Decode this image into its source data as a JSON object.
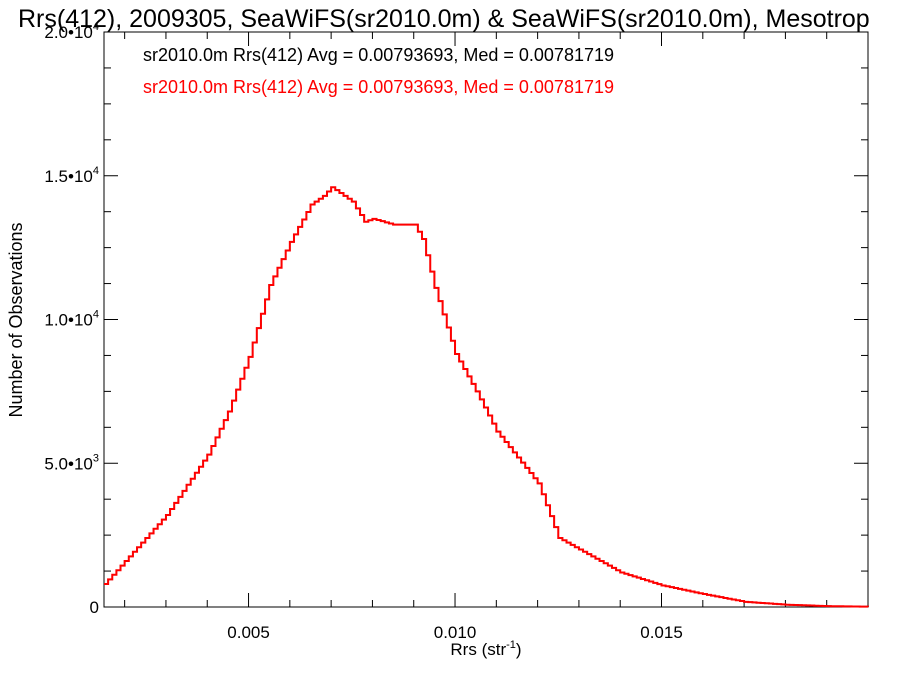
{
  "chart_data": {
    "type": "histogram-step",
    "title": "Rrs(412), 2009305, SeaWiFS(sr2010.0m) & SeaWiFS(sr2010.0m), Mesotrop",
    "xlabel": {
      "base": "Rrs (str",
      "sup": "-1",
      "tail": ")"
    },
    "ylabel": "Number of Observations",
    "xlim": [
      0.0015,
      0.02
    ],
    "ylim": [
      0,
      20000
    ],
    "grid": false,
    "x_ticks": [
      {
        "value": 0.005,
        "label": "0.005"
      },
      {
        "value": 0.01,
        "label": "0.010"
      },
      {
        "value": 0.015,
        "label": "0.015"
      }
    ],
    "y_ticks": [
      {
        "value": 0,
        "base": "0",
        "sup": ""
      },
      {
        "value": 5000,
        "base": "5.0•10",
        "sup": "3"
      },
      {
        "value": 10000,
        "base": "1.0•10",
        "sup": "4"
      },
      {
        "value": 15000,
        "base": "1.5•10",
        "sup": "4"
      },
      {
        "value": 20000,
        "base": "2.0•10",
        "sup": "4"
      }
    ],
    "legend": [
      {
        "text": "sr2010.0m Rrs(412) Avg = 0.00793693, Med = 0.00781719",
        "color": "#000000"
      },
      {
        "text": "sr2010.0m Rrs(412) Avg = 0.00793693, Med = 0.00781719",
        "color": "#ff0000"
      }
    ],
    "series": [
      {
        "color": "#000000",
        "x": [
          0.0015,
          0.003,
          0.004,
          0.0045,
          0.005,
          0.0055,
          0.006,
          0.0065,
          0.0068,
          0.007,
          0.0072,
          0.0075,
          0.0078,
          0.008,
          0.0085,
          0.009,
          0.0092,
          0.0095,
          0.01,
          0.0105,
          0.011,
          0.0115,
          0.012,
          0.0125,
          0.013,
          0.014,
          0.015,
          0.016,
          0.017,
          0.018,
          0.019,
          0.02
        ],
        "y": [
          800,
          3200,
          5300,
          6800,
          8700,
          11200,
          12700,
          14000,
          14300,
          14600,
          14400,
          14100,
          13400,
          13500,
          13300,
          13300,
          12800,
          11100,
          8800,
          7500,
          6100,
          5200,
          4300,
          2400,
          2000,
          1200,
          750,
          450,
          180,
          80,
          30,
          10
        ]
      },
      {
        "color": "#ff0000",
        "x": [
          0.0015,
          0.003,
          0.004,
          0.0045,
          0.005,
          0.0055,
          0.006,
          0.0065,
          0.0068,
          0.007,
          0.0072,
          0.0075,
          0.0078,
          0.008,
          0.0085,
          0.009,
          0.0092,
          0.0095,
          0.01,
          0.0105,
          0.011,
          0.0115,
          0.012,
          0.0125,
          0.013,
          0.014,
          0.015,
          0.016,
          0.017,
          0.018,
          0.019,
          0.02
        ],
        "y": [
          800,
          3200,
          5300,
          6800,
          8700,
          11200,
          12700,
          14000,
          14300,
          14600,
          14400,
          14100,
          13400,
          13500,
          13300,
          13300,
          12800,
          11100,
          8800,
          7500,
          6100,
          5200,
          4300,
          2400,
          2000,
          1200,
          750,
          450,
          180,
          80,
          30,
          10
        ]
      }
    ]
  }
}
